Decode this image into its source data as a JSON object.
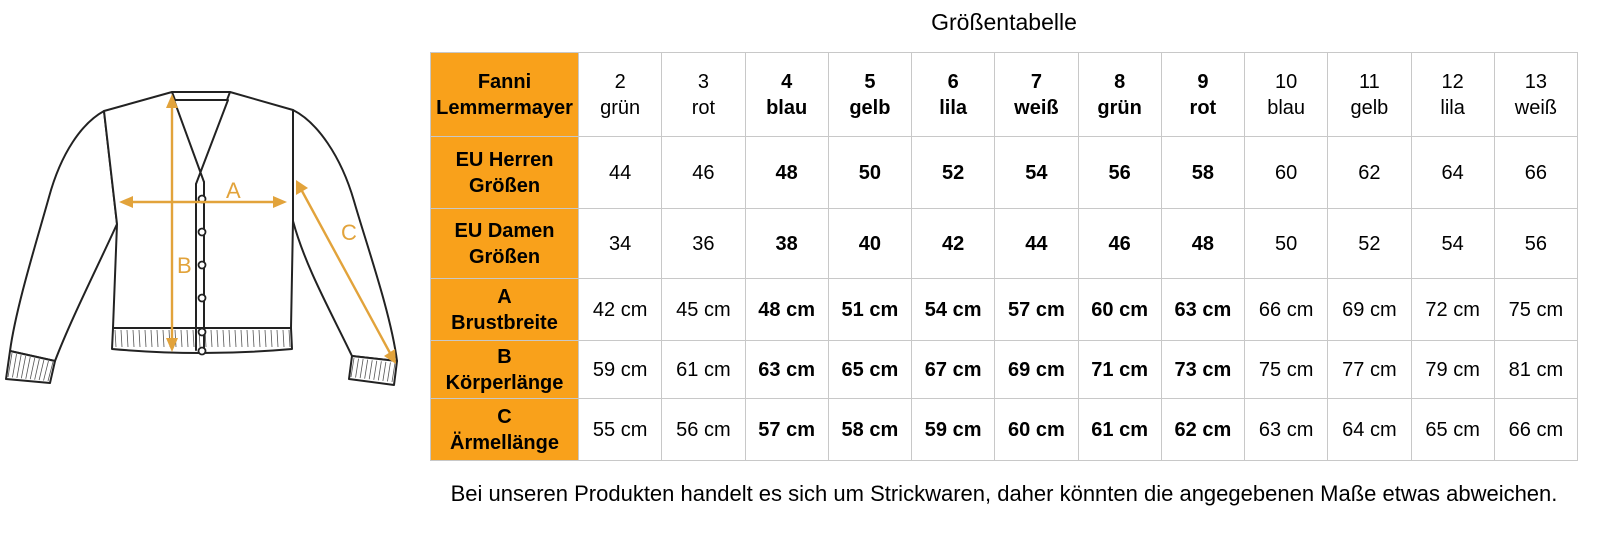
{
  "page": {
    "title": "Größentabelle",
    "footnote": "Bei unseren Produkten handelt es sich um Strickwaren, daher könnten die angegebenen Maße etwas abweichen."
  },
  "diagram": {
    "measure_a_label": "A",
    "measure_b_label": "B",
    "measure_c_label": "C",
    "arrow_color": "#E2A33B",
    "outline_color": "#222222"
  },
  "table": {
    "header_bg": "#F9A11B",
    "border_color": "#C8C8C8",
    "brand": {
      "line1": "Fanni",
      "line2": "Lemmermayer"
    },
    "columns": [
      {
        "size": "2",
        "color": "grün",
        "bold": false
      },
      {
        "size": "3",
        "color": "rot",
        "bold": false
      },
      {
        "size": "4",
        "color": "blau",
        "bold": true
      },
      {
        "size": "5",
        "color": "gelb",
        "bold": true
      },
      {
        "size": "6",
        "color": "lila",
        "bold": true
      },
      {
        "size": "7",
        "color": "weiß",
        "bold": true
      },
      {
        "size": "8",
        "color": "grün",
        "bold": true
      },
      {
        "size": "9",
        "color": "rot",
        "bold": true
      },
      {
        "size": "10",
        "color": "blau",
        "bold": false
      },
      {
        "size": "11",
        "color": "gelb",
        "bold": false
      },
      {
        "size": "12",
        "color": "lila",
        "bold": false
      },
      {
        "size": "13",
        "color": "weiß",
        "bold": false
      }
    ],
    "rows": [
      {
        "id": "eu-herren-groessen",
        "label1": "EU Herren",
        "label2": "Größen",
        "values": [
          "44",
          "46",
          "48",
          "50",
          "52",
          "54",
          "56",
          "58",
          "60",
          "62",
          "64",
          "66"
        ]
      },
      {
        "id": "eu-damen-groessen",
        "label1": "EU Damen",
        "label2": "Größen",
        "values": [
          "34",
          "36",
          "38",
          "40",
          "42",
          "44",
          "46",
          "48",
          "50",
          "52",
          "54",
          "56"
        ]
      },
      {
        "id": "a-brustbreite",
        "label1": "A",
        "label2": "Brustbreite",
        "values": [
          "42 cm",
          "45 cm",
          "48 cm",
          "51 cm",
          "54 cm",
          "57 cm",
          "60 cm",
          "63 cm",
          "66 cm",
          "69 cm",
          "72 cm",
          "75 cm"
        ]
      },
      {
        "id": "b-koerperlaenge",
        "label1": "B",
        "label2": "Körperlänge",
        "values": [
          "59 cm",
          "61 cm",
          "63 cm",
          "65 cm",
          "67 cm",
          "69 cm",
          "71 cm",
          "73 cm",
          "75 cm",
          "77 cm",
          "79 cm",
          "81 cm"
        ]
      },
      {
        "id": "c-aermellaenge",
        "label1": "C",
        "label2": "Ärmellänge",
        "values": [
          "55 cm",
          "56 cm",
          "57 cm",
          "58 cm",
          "59 cm",
          "60 cm",
          "61 cm",
          "62 cm",
          "63 cm",
          "64 cm",
          "65 cm",
          "66 cm"
        ]
      }
    ]
  }
}
